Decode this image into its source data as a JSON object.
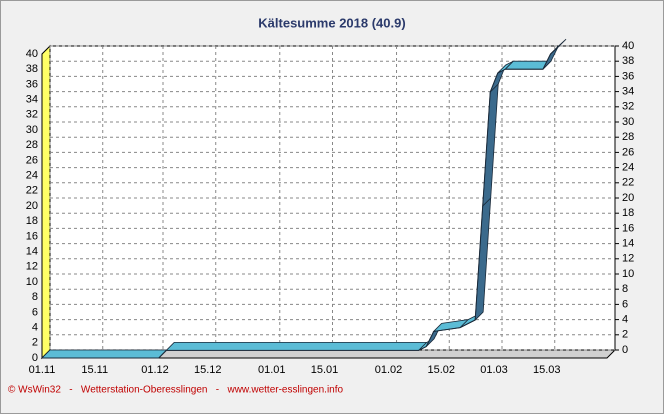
{
  "chart_data": {
    "type": "ribbon",
    "title": "Kältesumme  2018  (40.9)",
    "footer": "© WsWin32   -   Wetterstation-Oberesslingen   -   www.wetter-esslingen.info",
    "x": [
      0,
      31,
      33,
      100,
      102,
      104,
      111,
      115,
      117,
      119,
      121,
      123,
      133,
      135,
      137
    ],
    "values": [
      0,
      0,
      1,
      1,
      1.5,
      3.5,
      4,
      5,
      20,
      35,
      37.5,
      38,
      38,
      40,
      40.9
    ],
    "color": "#5bbcd6",
    "xlim": [
      0,
      150
    ],
    "xticks": [
      {
        "value": 0,
        "label": "01.11"
      },
      {
        "value": 14,
        "label": "15.11"
      },
      {
        "value": 30,
        "label": "01.12"
      },
      {
        "value": 44,
        "label": "15.12"
      },
      {
        "value": 61,
        "label": "01.01"
      },
      {
        "value": 75,
        "label": "15.01"
      },
      {
        "value": 92,
        "label": "01.02"
      },
      {
        "value": 106,
        "label": "15.02"
      },
      {
        "value": 120,
        "label": "01.03"
      },
      {
        "value": 134,
        "label": "15.03"
      }
    ],
    "ylim": [
      0,
      40
    ],
    "yticks": [
      0,
      2,
      4,
      6,
      8,
      10,
      12,
      14,
      16,
      18,
      20,
      22,
      24,
      26,
      28,
      30,
      32,
      34,
      36,
      38,
      40
    ],
    "y2lim": [
      0,
      40
    ],
    "y2ticks": [
      0,
      2,
      4,
      6,
      8,
      10,
      12,
      14,
      16,
      18,
      20,
      22,
      24,
      26,
      28,
      30,
      32,
      34,
      36,
      38,
      40
    ],
    "grid": true
  }
}
